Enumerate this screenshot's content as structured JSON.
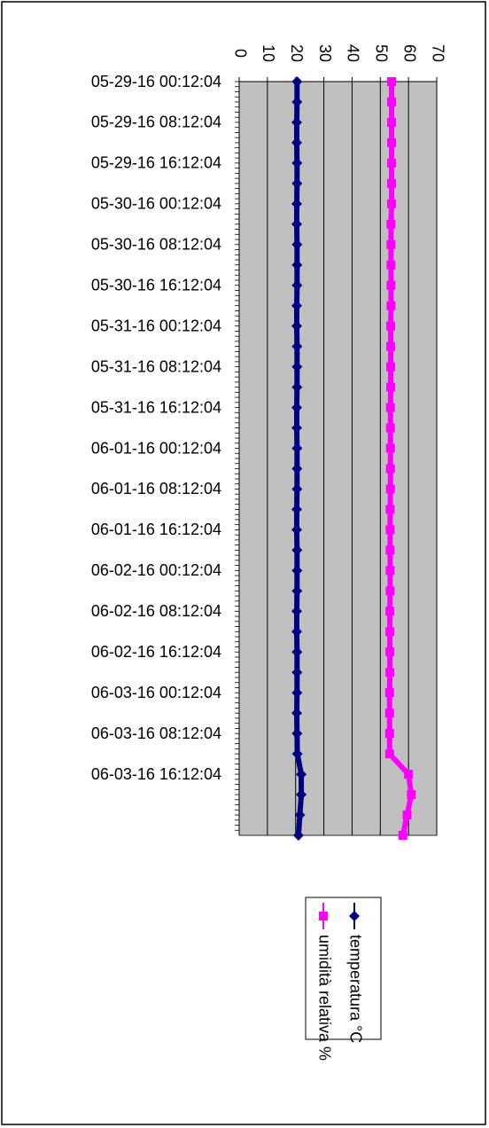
{
  "chart_data": {
    "type": "line",
    "categories": [
      "05-29-16 00:12:04",
      null,
      "05-29-16 08:12:04",
      null,
      "05-29-16 16:12:04",
      null,
      "05-30-16 00:12:04",
      null,
      "05-30-16 08:12:04",
      null,
      "05-30-16 16:12:04",
      null,
      "05-31-16 00:12:04",
      null,
      "05-31-16 08:12:04",
      null,
      "05-31-16 16:12:04",
      null,
      "06-01-16 00:12:04",
      null,
      "06-01-16 08:12:04",
      null,
      "06-01-16 16:12:04",
      null,
      "06-02-16 00:12:04",
      null,
      "06-02-16 08:12:04",
      null,
      "06-02-16 16:12:04",
      null,
      "06-03-16 00:12:04",
      null,
      "06-03-16 08:12:04",
      null,
      "06-03-16 16:12:04",
      null,
      null,
      null
    ],
    "series": [
      {
        "name": "temperatura °C",
        "color": "#000080",
        "marker": "diamond",
        "values": [
          20.5,
          20.5,
          20.4,
          20.4,
          20.5,
          20.5,
          20.4,
          20.4,
          20.5,
          20.5,
          20.5,
          20.4,
          20.4,
          20.5,
          20.5,
          20.5,
          20.4,
          20.4,
          20.5,
          20.5,
          20.5,
          20.4,
          20.4,
          20.5,
          20.5,
          20.5,
          20.4,
          20.4,
          20.5,
          20.5,
          20.5,
          20.4,
          20.5,
          20.6,
          22,
          22,
          21.5,
          21
        ]
      },
      {
        "name": "umidità relativa %",
        "color": "#ff00ff",
        "marker": "square",
        "values": [
          54,
          54,
          54,
          54,
          54,
          54,
          54,
          53.8,
          53.8,
          53.8,
          53.8,
          53.8,
          53.7,
          53.7,
          53.7,
          53.7,
          53.6,
          53.6,
          53.6,
          53.6,
          53.6,
          53.5,
          53.5,
          53.5,
          53.5,
          53.5,
          53.4,
          53.4,
          53.4,
          53.4,
          53.3,
          53.3,
          53.3,
          53.3,
          60,
          61,
          59.5,
          58
        ]
      }
    ],
    "ylim": [
      0,
      70
    ],
    "yticks": [
      0,
      10,
      20,
      30,
      40,
      50,
      60,
      70
    ],
    "grid": true
  }
}
